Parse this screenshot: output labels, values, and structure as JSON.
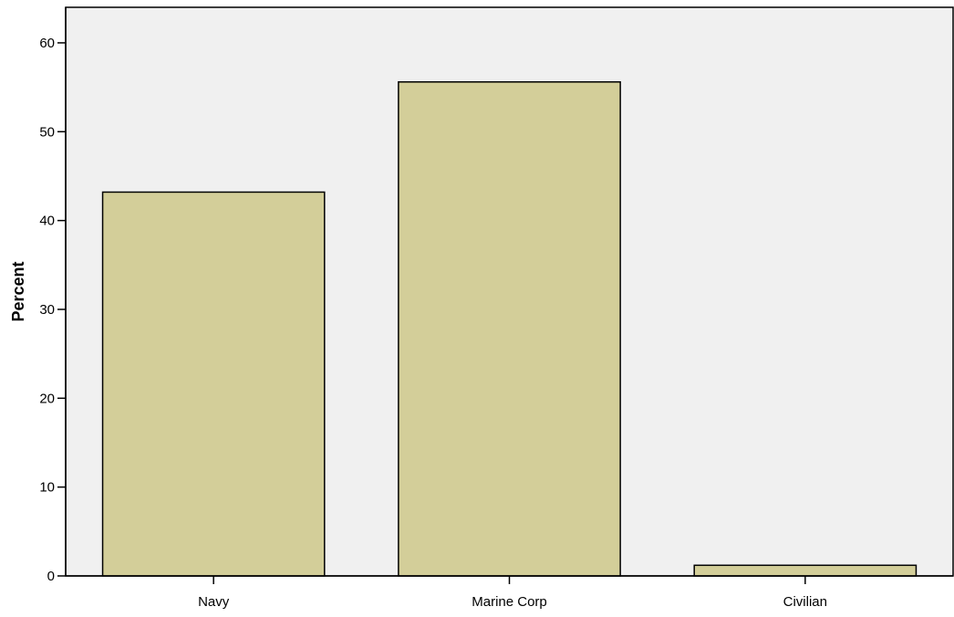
{
  "chart_data": {
    "type": "bar",
    "title": "",
    "xlabel": "",
    "ylabel": "Percent",
    "categories": [
      "Navy",
      "Marine Corp",
      "Civilian"
    ],
    "values": [
      43.2,
      55.6,
      1.2
    ],
    "ylim": [
      0,
      64
    ],
    "yticks": [
      0,
      10,
      20,
      30,
      40,
      50,
      60
    ],
    "grid": false,
    "colors": {
      "bar_fill": "#d3ce99",
      "bar_stroke": "#000000",
      "plot_background": "#f0f0f0",
      "axis": "#000000"
    }
  }
}
